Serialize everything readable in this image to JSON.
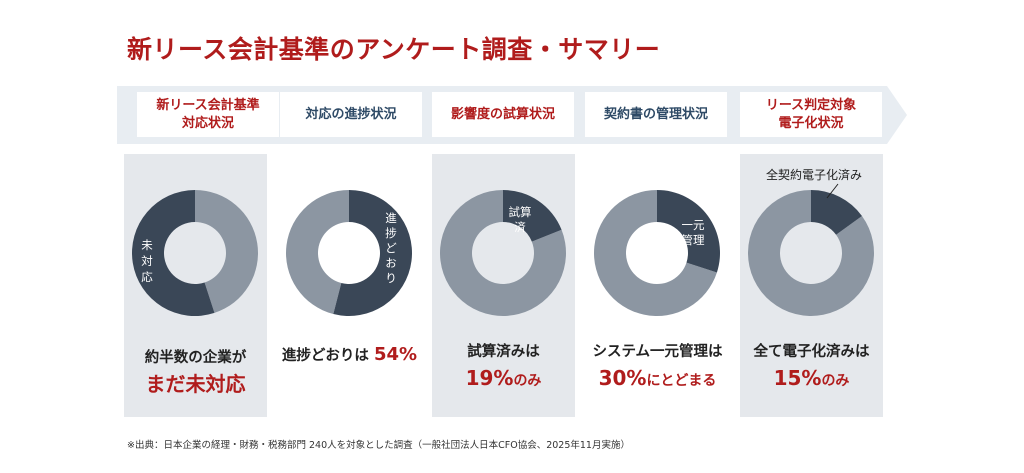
{
  "title": "新リース会計基準のアンケート調査・サマリー",
  "headers": [
    {
      "line1": "新リース会計基準",
      "line2": "対応状況",
      "color": "#b01c1c"
    },
    {
      "line1": "対応の進捗状況",
      "line2": "",
      "color": "#2e4a66"
    },
    {
      "line1": "影響度の試算状況",
      "line2": "",
      "color": "#b01c1c"
    },
    {
      "line1": "契約書の管理状況",
      "line2": "",
      "color": "#2e4a66"
    },
    {
      "line1": "リース判定対象",
      "line2": "電子化状況",
      "color": "#b01c1c"
    }
  ],
  "colors": {
    "dark": "#3a4757",
    "light": "#8c96a2",
    "accent_red": "#b01c1c",
    "panel": "#e5e8ec"
  },
  "chart_data": [
    {
      "type": "pie",
      "donut": true,
      "highlight_label": "未対応",
      "highlight_share_pct": 55,
      "caption_line1": "約半数の企業が",
      "caption_line2": "まだ未対応"
    },
    {
      "type": "pie",
      "donut": true,
      "highlight_label": "進捗どおり",
      "highlight_share_pct": 54,
      "caption_text": "進捗どおりは",
      "caption_value": "54%"
    },
    {
      "type": "pie",
      "donut": true,
      "highlight_label": "試算済",
      "highlight_share_pct": 19,
      "caption_line1": "試算済みは",
      "caption_value": "19%",
      "caption_suffix": "のみ"
    },
    {
      "type": "pie",
      "donut": true,
      "highlight_label": "一元管理",
      "highlight_share_pct": 30,
      "caption_line1": "システム一元管理は",
      "caption_value": "30%",
      "caption_suffix": "にとどまる"
    },
    {
      "type": "pie",
      "donut": true,
      "highlight_label": "全契約電子化済み",
      "highlight_share_pct": 15,
      "caption_line1": "全て電子化済みは",
      "caption_value": "15%",
      "caption_suffix": "のみ"
    }
  ],
  "footnote": "※出典：日本企業の経理・財務・税務部門 240人を対象とした調査（一般社団法人日本CFO協会、2025年11月実施）"
}
